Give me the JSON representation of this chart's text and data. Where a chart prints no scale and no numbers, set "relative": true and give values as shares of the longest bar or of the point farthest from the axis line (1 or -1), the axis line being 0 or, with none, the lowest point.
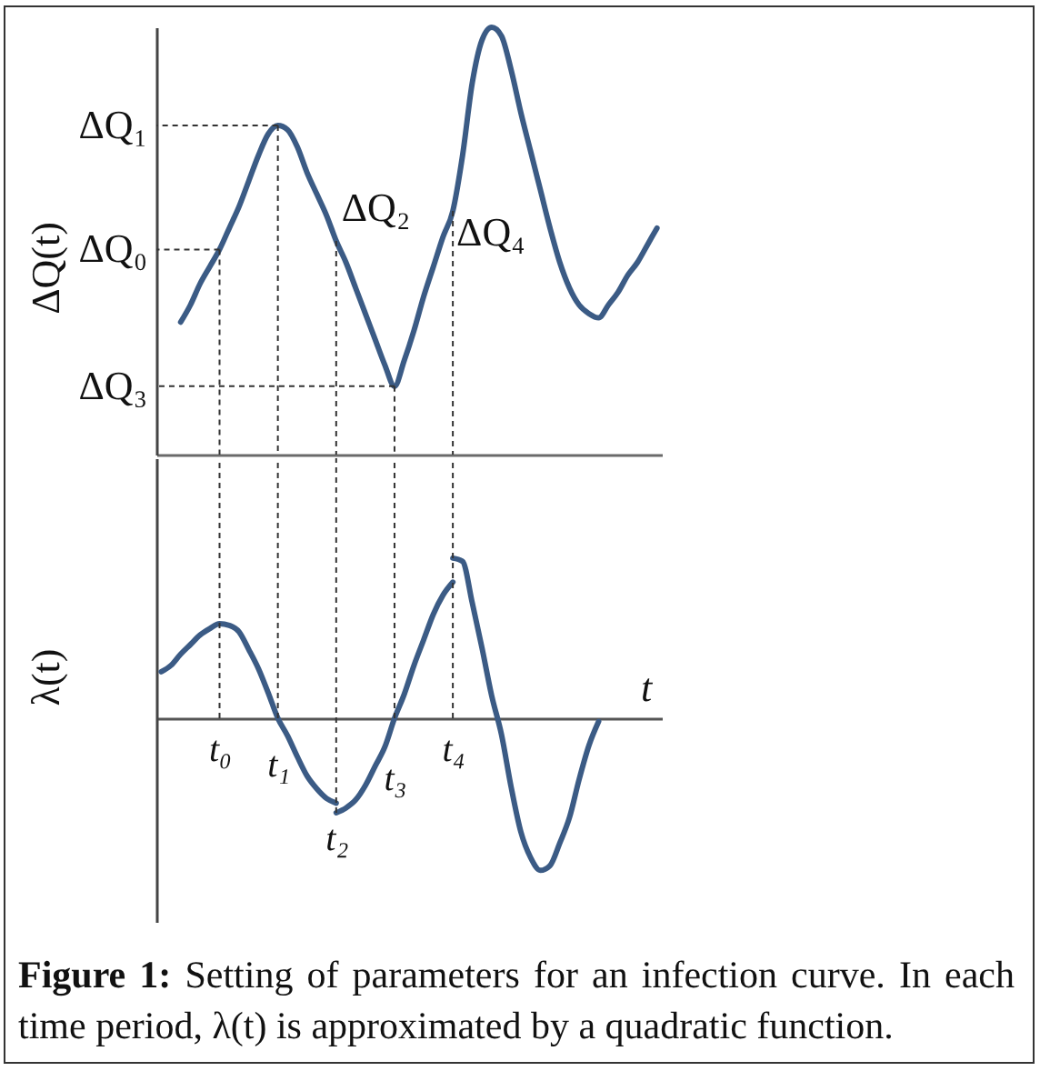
{
  "chart_data": [
    {
      "type": "line",
      "ylabel": "ΔQ(t)",
      "relative": true,
      "tick_labels": false,
      "categories": [
        null,
        null,
        null,
        null,
        null,
        null,
        "t₀",
        null,
        null,
        null,
        null,
        null,
        "t₁",
        null,
        null,
        null,
        null,
        null,
        "t₂",
        null,
        null,
        null,
        null,
        null,
        "t₃",
        null,
        null,
        null,
        null,
        null,
        "t₄",
        null,
        null,
        null,
        null,
        null,
        null,
        null,
        null,
        null,
        null,
        null,
        null,
        null,
        null,
        null,
        null,
        null,
        null,
        null,
        null,
        null
      ],
      "series": [
        {
          "color": "#3b5b85",
          "values": [
            null,
            null,
            0.31,
            0.35,
            0.4,
            0.44,
            0.48,
            0.53,
            0.58,
            0.64,
            0.7,
            0.75,
            0.77,
            0.76,
            0.72,
            0.66,
            0.61,
            0.56,
            0.5,
            0.45,
            0.39,
            0.33,
            0.27,
            0.21,
            0.16,
            0.22,
            0.29,
            0.37,
            0.44,
            0.51,
            0.57,
            0.7,
            0.87,
            0.97,
            1,
            0.98,
            0.9,
            0.8,
            0.71,
            0.62,
            0.53,
            0.45,
            0.39,
            0.35,
            0.33,
            0.32,
            0.35,
            0.38,
            0.42,
            0.45,
            0.49,
            0.53
          ]
        }
      ],
      "annotations": [
        {
          "text": "ΔQ₀",
          "x": "t₀",
          "y": 0.48
        },
        {
          "text": "ΔQ₁",
          "x": "t₁",
          "y": 0.77
        },
        {
          "text": "ΔQ₂",
          "x": "t₂",
          "y": 0.5
        },
        {
          "text": "ΔQ₃",
          "x": "t₃",
          "y": 0.16
        },
        {
          "text": "ΔQ₄",
          "x": "t₄",
          "y": 0.57
        }
      ]
    },
    {
      "type": "line",
      "ylabel": "λ(t)",
      "xlabel": "t",
      "relative": true,
      "tick_labels": "x",
      "grid": "x",
      "categories": [
        null,
        null,
        null,
        null,
        null,
        null,
        "t₀",
        null,
        null,
        null,
        null,
        null,
        "t₁",
        null,
        null,
        null,
        null,
        null,
        "t₂",
        null,
        null,
        null,
        null,
        null,
        "t₃",
        null,
        null,
        null,
        null,
        null,
        "t₄",
        null,
        null,
        null,
        null,
        null,
        null,
        null,
        null,
        null,
        null,
        null,
        null,
        null,
        null,
        null,
        null,
        null,
        null,
        null,
        null,
        null
      ],
      "series": [
        {
          "color": "#3b5b85",
          "values": [
            0.29,
            0.33,
            0.4,
            0.46,
            0.52,
            0.56,
            0.59,
            0.58,
            0.54,
            0.43,
            0.31,
            0.16,
            0,
            -0.11,
            -0.24,
            -0.36,
            -0.44,
            -0.5,
            -0.53,
            null,
            null,
            null,
            null,
            null,
            null,
            null,
            null,
            null,
            null,
            null,
            null,
            null,
            null,
            null,
            null,
            null,
            null,
            null,
            null,
            null,
            null,
            null,
            null,
            null,
            null,
            null,
            null,
            null,
            null,
            null,
            null,
            null
          ]
        },
        {
          "color": "#3b5b85",
          "values": [
            null,
            null,
            null,
            null,
            null,
            null,
            null,
            null,
            null,
            null,
            null,
            null,
            null,
            null,
            null,
            null,
            null,
            null,
            -0.59,
            -0.56,
            -0.51,
            -0.42,
            -0.3,
            -0.18,
            0,
            0.15,
            0.33,
            0.49,
            0.65,
            0.77,
            0.85,
            null,
            null,
            null,
            null,
            null,
            null,
            null,
            null,
            null,
            null,
            null,
            null,
            null,
            null,
            null,
            null,
            null,
            null,
            null,
            null,
            null
          ]
        },
        {
          "color": "#3b5b85",
          "values": [
            null,
            null,
            null,
            null,
            null,
            null,
            null,
            null,
            null,
            null,
            null,
            null,
            null,
            null,
            null,
            null,
            null,
            null,
            null,
            null,
            null,
            null,
            null,
            null,
            null,
            null,
            null,
            null,
            null,
            null,
            1,
            0.98,
            0.72,
            0.44,
            0.14,
            -0.1,
            -0.43,
            -0.71,
            -0.87,
            -0.95,
            -0.92,
            -0.78,
            -0.62,
            -0.38,
            -0.17,
            -0.02,
            null,
            null,
            null,
            null,
            null,
            null
          ]
        }
      ],
      "annotations": [
        "Figure 1: Setting of parameters for an infection curve. In each time period, λ(t) is approximated by a quadratic function."
      ]
    }
  ]
}
